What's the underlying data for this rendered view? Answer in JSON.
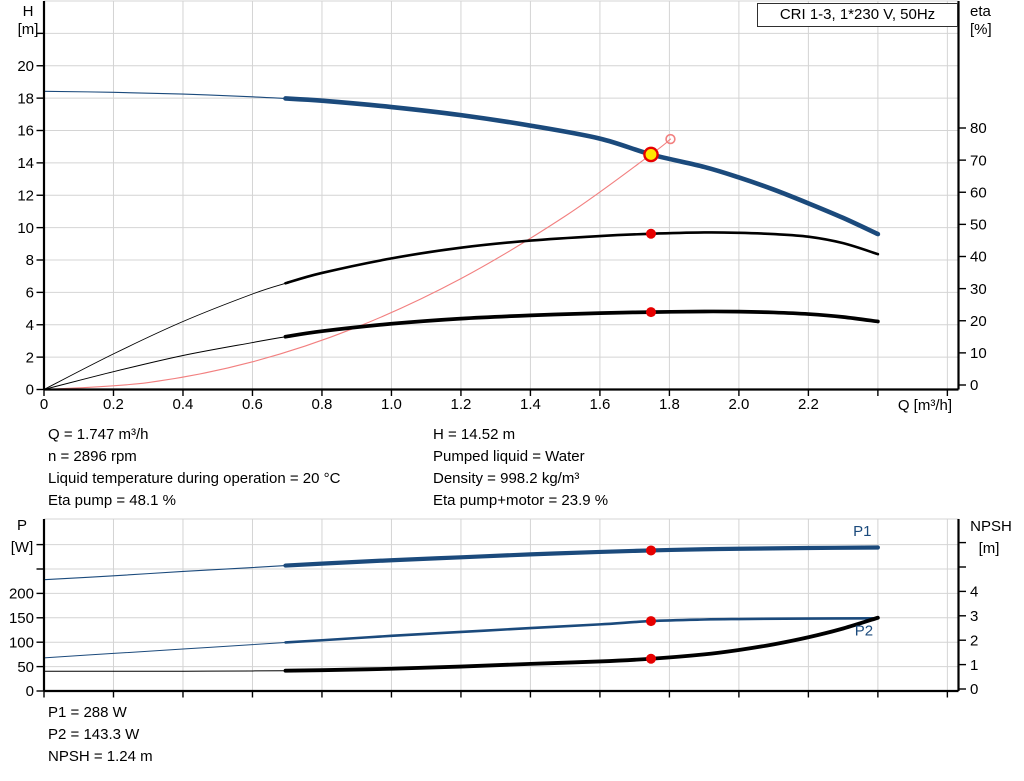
{
  "title_box": {
    "label": "CRI 1-3, 1*230 V, 50Hz"
  },
  "colors": {
    "curve_blue": "#1b4a7c",
    "curve_black": "#000000",
    "system_red": "#f28080",
    "dot_red": "#e60000",
    "duty_yellow": "#ffe600",
    "grid_gray": "#d4d4d4",
    "axis_black": "#000000"
  },
  "info_top": {
    "left": [
      "Q = 1.747 m³/h",
      "n = 2896 rpm",
      "Liquid temperature during operation = 20 °C",
      "Eta pump = 48.1 %"
    ],
    "right": [
      "H = 14.52 m",
      "Pumped liquid = Water",
      "Density = 998.2 kg/m³",
      "Eta pump+motor = 23.9 %"
    ]
  },
  "info_bottom": [
    "P1 = 288 W",
    "P2 = 143.3 W",
    "NPSH = 1.24 m"
  ],
  "chart_data": [
    {
      "id": "hq",
      "type": "line",
      "title": "CRI 1-3, 1*230 V, 50Hz",
      "x_axis": {
        "label": "Q [m³/h]",
        "ticks": [
          [
            0,
            "0"
          ],
          [
            0.2,
            "0.2"
          ],
          [
            0.4,
            "0.4"
          ],
          [
            0.6,
            "0.6"
          ],
          [
            0.8,
            "0.8"
          ],
          [
            1.0,
            "1.0"
          ],
          [
            1.2,
            "1.2"
          ],
          [
            1.4,
            "1.4"
          ],
          [
            1.6,
            "1.6"
          ],
          [
            1.8,
            "1.8"
          ],
          [
            2.0,
            "2.0"
          ],
          [
            2.2,
            "2.2"
          ],
          [
            2.4,
            ""
          ],
          [
            2.6,
            ""
          ]
        ]
      },
      "y_left": {
        "label": "H",
        "unit": "[m]",
        "ticks": [
          [
            0,
            "0"
          ],
          [
            2,
            "2"
          ],
          [
            4,
            "4"
          ],
          [
            6,
            "6"
          ],
          [
            8,
            "8"
          ],
          [
            10,
            "10"
          ],
          [
            12,
            "12"
          ],
          [
            14,
            "14"
          ],
          [
            16,
            "16"
          ],
          [
            18,
            "18"
          ],
          [
            20,
            "20"
          ],
          [
            22,
            ""
          ]
        ]
      },
      "y_right": {
        "label": "eta",
        "unit": "[%]",
        "ticks": [
          [
            0,
            "0"
          ],
          [
            10,
            "10"
          ],
          [
            20,
            "20"
          ],
          [
            30,
            "30"
          ],
          [
            40,
            "40"
          ],
          [
            50,
            "50"
          ],
          [
            60,
            "60"
          ],
          [
            70,
            "70"
          ],
          [
            80,
            "80"
          ]
        ]
      },
      "series": [
        {
          "name": "system-curve",
          "axis": "left",
          "color": "system_red",
          "points": [
            [
              0,
              0
            ],
            [
              0.3,
              0.43
            ],
            [
              0.6,
              1.71
            ],
            [
              0.9,
              3.85
            ],
            [
              1.2,
              6.85
            ],
            [
              1.5,
              10.71
            ],
            [
              1.747,
              14.52
            ],
            [
              1.803,
              15.47
            ]
          ]
        },
        {
          "name": "efficiency-pump-curve",
          "axis": "eta",
          "color": "curve_black",
          "points": [
            [
              0,
              0
            ],
            [
              0.2,
              11
            ],
            [
              0.4,
              21
            ],
            [
              0.6,
              29.5
            ],
            [
              0.695,
              32.8
            ],
            [
              0.8,
              36
            ],
            [
              1.0,
              40.5
            ],
            [
              1.2,
              43.8
            ],
            [
              1.4,
              46
            ],
            [
              1.6,
              47.4
            ],
            [
              1.747,
              48.1
            ],
            [
              1.9,
              48.5
            ],
            [
              2.0,
              48.4
            ],
            [
              2.1,
              48
            ],
            [
              2.2,
              47.2
            ],
            [
              2.3,
              45.2
            ],
            [
              2.4,
              41.8
            ]
          ]
        },
        {
          "name": "efficiency-pump-motor-curve",
          "axis": "eta",
          "color": "curve_black",
          "points": [
            [
              0,
              0
            ],
            [
              0.2,
              5.5
            ],
            [
              0.4,
              10.5
            ],
            [
              0.6,
              14.5
            ],
            [
              0.695,
              16.3
            ],
            [
              0.8,
              18
            ],
            [
              1.0,
              20.3
            ],
            [
              1.2,
              21.9
            ],
            [
              1.4,
              22.9
            ],
            [
              1.6,
              23.6
            ],
            [
              1.747,
              23.9
            ],
            [
              1.9,
              24.1
            ],
            [
              2.0,
              24.05
            ],
            [
              2.1,
              23.8
            ],
            [
              2.2,
              23.3
            ],
            [
              2.3,
              22.4
            ],
            [
              2.4,
              21.0
            ]
          ]
        },
        {
          "name": "pump-head-curve",
          "axis": "left",
          "color": "curve_blue",
          "points": [
            [
              0,
              18.42
            ],
            [
              0.2,
              18.36
            ],
            [
              0.4,
              18.25
            ],
            [
              0.6,
              18.08
            ],
            [
              0.695,
              17.98
            ],
            [
              0.8,
              17.84
            ],
            [
              1.0,
              17.45
            ],
            [
              1.2,
              16.95
            ],
            [
              1.4,
              16.3
            ],
            [
              1.6,
              15.5
            ],
            [
              1.747,
              14.52
            ],
            [
              1.9,
              13.75
            ],
            [
              2.0,
              13.1
            ],
            [
              2.1,
              12.35
            ],
            [
              2.2,
              11.5
            ],
            [
              2.3,
              10.6
            ],
            [
              2.4,
              9.6
            ]
          ]
        }
      ],
      "markers": [
        {
          "style": "dot",
          "x": 1.747,
          "v": 48.1,
          "axis": "eta",
          "name": "eta-pump-operating-dot"
        },
        {
          "style": "dot",
          "x": 1.747,
          "v": 23.9,
          "axis": "eta",
          "name": "eta-pump-motor-operating-dot"
        },
        {
          "style": "duty_actual",
          "x": 1.747,
          "v": 14.52,
          "axis": "left",
          "name": "duty-point-marker"
        },
        {
          "style": "duty_rated",
          "x": 1.803,
          "v": 15.47,
          "axis": "left",
          "name": "rated-duty-marker"
        }
      ],
      "labels": []
    },
    {
      "id": "pw",
      "type": "line",
      "title": "",
      "x_axis": {
        "label": "",
        "ticks": [
          [
            0,
            ""
          ],
          [
            0.2,
            ""
          ],
          [
            0.4,
            ""
          ],
          [
            0.6,
            ""
          ],
          [
            0.8,
            ""
          ],
          [
            1.0,
            ""
          ],
          [
            1.2,
            ""
          ],
          [
            1.4,
            ""
          ],
          [
            1.6,
            ""
          ],
          [
            1.8,
            ""
          ],
          [
            2.0,
            ""
          ],
          [
            2.2,
            ""
          ],
          [
            2.4,
            ""
          ],
          [
            2.6,
            ""
          ]
        ]
      },
      "y_left": {
        "label": "P",
        "unit": "[W]",
        "ticks": [
          [
            0,
            "0"
          ],
          [
            50,
            "50"
          ],
          [
            100,
            "100"
          ],
          [
            150,
            "150"
          ],
          [
            200,
            "200"
          ],
          [
            250,
            ""
          ],
          [
            300,
            ""
          ]
        ]
      },
      "y_right": {
        "label": "NPSH",
        "unit": "[m]",
        "ticks": [
          [
            0,
            "0"
          ],
          [
            1,
            "1"
          ],
          [
            2,
            "2"
          ],
          [
            3,
            "3"
          ],
          [
            4,
            "4"
          ],
          [
            5,
            ""
          ],
          [
            6,
            ""
          ]
        ]
      },
      "series": [
        {
          "name": "p1-curve",
          "axis": "left",
          "color": "curve_blue",
          "points": [
            [
              0,
              228
            ],
            [
              0.2,
              236
            ],
            [
              0.4,
              245
            ],
            [
              0.6,
              253
            ],
            [
              0.695,
              257
            ],
            [
              0.8,
              261
            ],
            [
              1.0,
              268
            ],
            [
              1.2,
              274
            ],
            [
              1.4,
              280
            ],
            [
              1.6,
              285
            ],
            [
              1.747,
              288
            ],
            [
              1.9,
              290.5
            ],
            [
              2.0,
              291.5
            ],
            [
              2.2,
              293
            ],
            [
              2.4,
              294
            ]
          ]
        },
        {
          "name": "p2-curve",
          "axis": "left",
          "color": "curve_blue",
          "points": [
            [
              0,
              68
            ],
            [
              0.2,
              77
            ],
            [
              0.4,
              86
            ],
            [
              0.6,
              95
            ],
            [
              0.695,
              99.5
            ],
            [
              0.8,
              104
            ],
            [
              1.0,
              113
            ],
            [
              1.2,
              121
            ],
            [
              1.4,
              129
            ],
            [
              1.6,
              136.5
            ],
            [
              1.747,
              143.3
            ],
            [
              1.9,
              146.5
            ],
            [
              2.0,
              147.5
            ],
            [
              2.2,
              148.5
            ],
            [
              2.4,
              149
            ]
          ]
        },
        {
          "name": "npsh-curve",
          "axis": "right",
          "color": "curve_black",
          "points": [
            [
              0,
              0.73
            ],
            [
              0.2,
              0.73
            ],
            [
              0.4,
              0.73
            ],
            [
              0.6,
              0.74
            ],
            [
              0.695,
              0.75
            ],
            [
              0.8,
              0.77
            ],
            [
              1.0,
              0.83
            ],
            [
              1.2,
              0.92
            ],
            [
              1.4,
              1.03
            ],
            [
              1.6,
              1.13
            ],
            [
              1.747,
              1.24
            ],
            [
              1.9,
              1.42
            ],
            [
              2.0,
              1.6
            ],
            [
              2.1,
              1.83
            ],
            [
              2.2,
              2.12
            ],
            [
              2.3,
              2.48
            ],
            [
              2.4,
              2.92
            ]
          ]
        }
      ],
      "markers": [
        {
          "style": "dot",
          "x": 1.747,
          "v": 288,
          "axis": "left",
          "name": "p1-operating-dot"
        },
        {
          "style": "dot",
          "x": 1.747,
          "v": 143.3,
          "axis": "left",
          "name": "p2-operating-dot"
        },
        {
          "style": "dot",
          "x": 1.747,
          "v": 1.24,
          "axis": "right",
          "name": "npsh-operating-dot"
        }
      ],
      "labels": [
        {
          "text": "P1",
          "x": 2.355,
          "v": 328,
          "axis": "left",
          "name": "curve-label-p1"
        },
        {
          "text": "P2",
          "x": 2.36,
          "v": 124,
          "axis": "left",
          "name": "curve-label-p2"
        }
      ]
    }
  ]
}
